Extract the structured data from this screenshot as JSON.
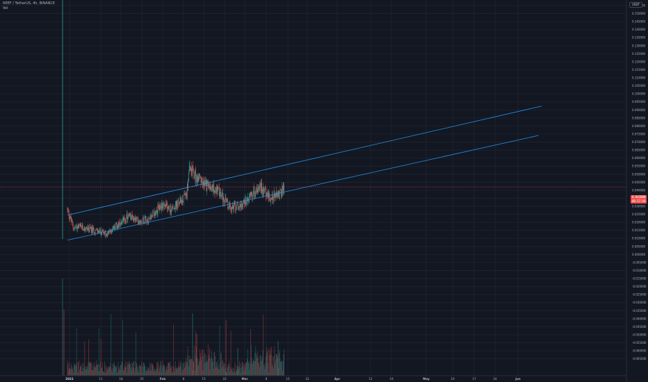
{
  "header": {
    "symbol_line": "REEF / TetherUS, 4h, BINANCE",
    "volume_label": "Vol"
  },
  "price_scale": {
    "currency": "USDT",
    "ticks": [
      "0.155000",
      "0.150000",
      "0.145000",
      "0.140000",
      "0.135000",
      "0.130000",
      "0.125000",
      "0.120000",
      "0.115000",
      "0.110000",
      "0.105000",
      "0.100000",
      "0.095000",
      "0.090000",
      "0.085000",
      "0.080000",
      "0.075000",
      "0.070000",
      "0.065000",
      "0.060000",
      "0.055000",
      "0.050000",
      "0.045000",
      "0.040000",
      "0.035000",
      "0.030000",
      "0.025000",
      "0.020000",
      "0.015000",
      "0.010000",
      "0.005000",
      "0.000000",
      "-0.005000",
      "-0.010000",
      "-0.015000",
      "-0.020000",
      "-0.025000",
      "-0.030000",
      "-0.035000",
      "-0.040000",
      "-0.045000",
      "-0.050000",
      "-0.055000",
      "-0.060000",
      "-0.065000"
    ],
    "last_price": "0.042080",
    "countdown": "00:17:44"
  },
  "time_axis": {
    "labels": [
      "2021",
      "11",
      "18",
      "25",
      "Feb",
      "8",
      "15",
      "22",
      "Mar",
      "8",
      "15",
      "22",
      "Apr",
      "12",
      "19",
      "May",
      "10",
      "17",
      "24",
      "Jun"
    ]
  },
  "colors": {
    "background": "#131722",
    "grid": "#1e222d",
    "up": "#26a69a",
    "down": "#ef5350",
    "channel": "#2196f3",
    "last_price_line": "#ef5350",
    "axis_text": "#b2b5be"
  },
  "chart_data": {
    "type": "candlestick",
    "title": "REEF / TetherUS, 4h, BINANCE",
    "ylim": [
      -0.0675,
      0.1575
    ],
    "x_range": [
      "2020-12-30",
      "2021-06-10"
    ],
    "last_price": 0.04208,
    "price_path": [
      {
        "t": "2021-01-01",
        "p": 0.028
      },
      {
        "t": "2021-01-03",
        "p": 0.0165
      },
      {
        "t": "2021-01-05",
        "p": 0.017
      },
      {
        "t": "2021-01-10",
        "p": 0.015
      },
      {
        "t": "2021-01-14",
        "p": 0.0125
      },
      {
        "t": "2021-01-17",
        "p": 0.018
      },
      {
        "t": "2021-01-21",
        "p": 0.024
      },
      {
        "t": "2021-01-24",
        "p": 0.021
      },
      {
        "t": "2021-01-28",
        "p": 0.023
      },
      {
        "t": "2021-02-01",
        "p": 0.031
      },
      {
        "t": "2021-02-04",
        "p": 0.028
      },
      {
        "t": "2021-02-07",
        "p": 0.033
      },
      {
        "t": "2021-02-09",
        "p": 0.038
      },
      {
        "t": "2021-02-10",
        "p": 0.055
      },
      {
        "t": "2021-02-12",
        "p": 0.048
      },
      {
        "t": "2021-02-15",
        "p": 0.043
      },
      {
        "t": "2021-02-19",
        "p": 0.04
      },
      {
        "t": "2021-02-23",
        "p": 0.029
      },
      {
        "t": "2021-02-27",
        "p": 0.031
      },
      {
        "t": "2021-03-02",
        "p": 0.038
      },
      {
        "t": "2021-03-05",
        "p": 0.042
      },
      {
        "t": "2021-03-08",
        "p": 0.036
      },
      {
        "t": "2021-03-11",
        "p": 0.037
      },
      {
        "t": "2021-03-13",
        "p": 0.042
      }
    ],
    "spike": {
      "t": "2020-12-31",
      "high": 0.158,
      "low": 0.0095
    },
    "channel": {
      "upper": [
        {
          "t": "2021-01-01",
          "p": 0.0245
        },
        {
          "t": "2021-06-05",
          "p": 0.0924
        }
      ],
      "lower": [
        {
          "t": "2021-01-01",
          "p": 0.0089
        },
        {
          "t": "2021-06-04",
          "p": 0.0741
        }
      ]
    },
    "volume": {
      "max_visible": 1.0,
      "bar_color_up": "#26a69a",
      "bar_color_down": "#ef5350"
    }
  }
}
